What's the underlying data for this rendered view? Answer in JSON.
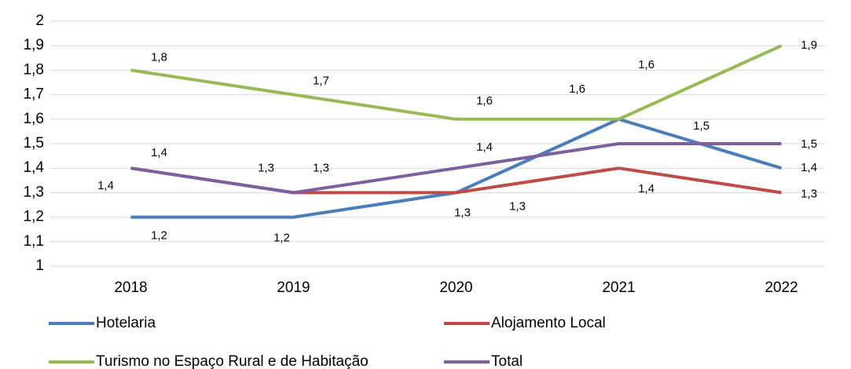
{
  "chart_data": {
    "type": "line",
    "categories": [
      "2018",
      "2019",
      "2020",
      "2021",
      "2022"
    ],
    "series": [
      {
        "name": "Hotelaria",
        "color": "#4a7ebb",
        "values": [
          1.2,
          1.2,
          1.3,
          1.6,
          1.4
        ],
        "value_labels": [
          "1,2",
          "1,2",
          "1,3",
          "1,6",
          "1,4"
        ]
      },
      {
        "name": "Alojamento Local",
        "color": "#be4b48",
        "values": [
          1.4,
          1.3,
          1.3,
          1.4,
          1.3
        ],
        "value_labels": [
          "1,4",
          "1,3",
          "1,3",
          "1,4",
          "1,3"
        ]
      },
      {
        "name": "Turismo no Espaço Rural e de Habitação",
        "color": "#98b954",
        "values": [
          1.8,
          1.7,
          1.6,
          1.6,
          1.9
        ],
        "value_labels": [
          "1,8",
          "1,7",
          "1,6",
          "1,6",
          "1,9"
        ]
      },
      {
        "name": "Total",
        "color": "#7d5fa0",
        "values": [
          1.4,
          1.3,
          1.4,
          1.5,
          1.5
        ],
        "value_labels": [
          "1,4",
          "1,3",
          "1,4",
          "1,5",
          "1,5"
        ]
      }
    ],
    "ylim": [
      1,
      2
    ],
    "yticks": [
      1,
      {
        "value": 1.1,
        "label": "1,1"
      },
      {
        "value": 1.2,
        "label": "1,2"
      },
      {
        "value": 1.3,
        "label": "1,3"
      },
      {
        "value": 1.4,
        "label": "1,4"
      },
      {
        "value": 1.5,
        "label": "1,5"
      },
      {
        "value": 1.6,
        "label": "1,6"
      },
      {
        "value": 1.7,
        "label": "1,7"
      },
      {
        "value": 1.8,
        "label": "1,8"
      },
      {
        "value": 1.9,
        "label": "1,9"
      },
      2
    ],
    "grid": true
  }
}
